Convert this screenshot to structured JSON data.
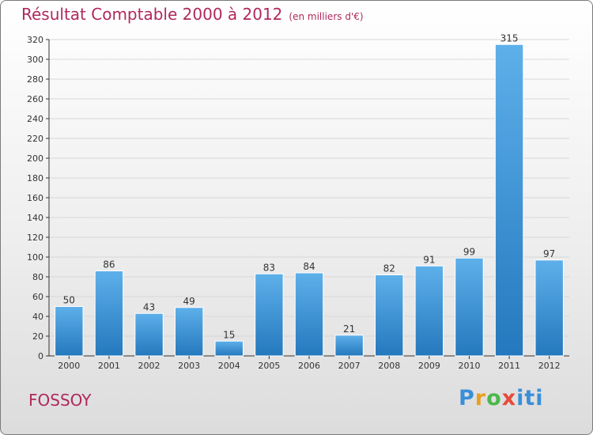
{
  "title": "Résultat Comptable 2000 à 2012",
  "subtitle": "(en milliers d'€)",
  "location": "FOSSOY",
  "logo": "Proxiti",
  "colors": {
    "title": "#b0285c",
    "bar_light": "#5eb0ea",
    "bar_dark": "#2478bd",
    "grid": "#d8d8d8"
  },
  "chart_data": {
    "type": "bar",
    "title": "Résultat Comptable 2000 à 2012",
    "subtitle": "(en milliers d'€)",
    "categories": [
      "2000",
      "2001",
      "2002",
      "2003",
      "2004",
      "2005",
      "2006",
      "2007",
      "2008",
      "2009",
      "2010",
      "2011",
      "2012"
    ],
    "values": [
      50,
      86,
      43,
      49,
      15,
      83,
      84,
      21,
      82,
      91,
      99,
      315,
      97
    ],
    "ylim": [
      0,
      320
    ],
    "yticks": [
      0,
      20,
      40,
      60,
      80,
      100,
      120,
      140,
      160,
      180,
      200,
      220,
      240,
      260,
      280,
      300,
      320
    ],
    "grid": true,
    "data_labels": true
  }
}
